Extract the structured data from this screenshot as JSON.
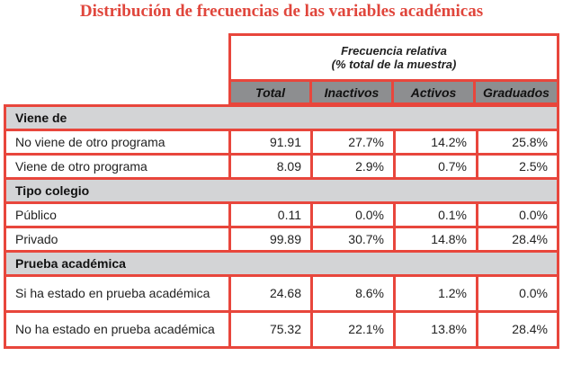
{
  "title": "Distribución de frecuencias de las variables académicas",
  "header": {
    "group_line1": "Frecuencia relativa",
    "group_line2": "(% total de la muestra)",
    "columns": [
      "Total",
      "Inactivos",
      "Activos",
      "Graduados"
    ]
  },
  "colors": {
    "border": "#e8463c",
    "title": "#e0463c",
    "header_bg": "#8d8e90",
    "group_bg": "#d3d4d6"
  },
  "groups": [
    {
      "label": "Viene de",
      "rows": [
        {
          "label": "No viene de otro programa",
          "values": [
            "91.91",
            "27.7%",
            "14.2%",
            "25.8%"
          ]
        },
        {
          "label": "Viene de otro programa",
          "values": [
            "8.09",
            "2.9%",
            "0.7%",
            "2.5%"
          ]
        }
      ]
    },
    {
      "label": "Tipo colegio",
      "rows": [
        {
          "label": "Público",
          "values": [
            "0.11",
            "0.0%",
            "0.1%",
            "0.0%"
          ]
        },
        {
          "label": "Privado",
          "values": [
            "99.89",
            "30.7%",
            "14.8%",
            "28.4%"
          ]
        }
      ]
    },
    {
      "label": "Prueba académica",
      "rows": [
        {
          "label": "Si ha estado en prueba académica",
          "values": [
            "24.68",
            "8.6%",
            "1.2%",
            "0.0%"
          ]
        },
        {
          "label": "No ha estado en prueba académica",
          "values": [
            "75.32",
            "22.1%",
            "13.8%",
            "28.4%"
          ]
        }
      ]
    }
  ]
}
